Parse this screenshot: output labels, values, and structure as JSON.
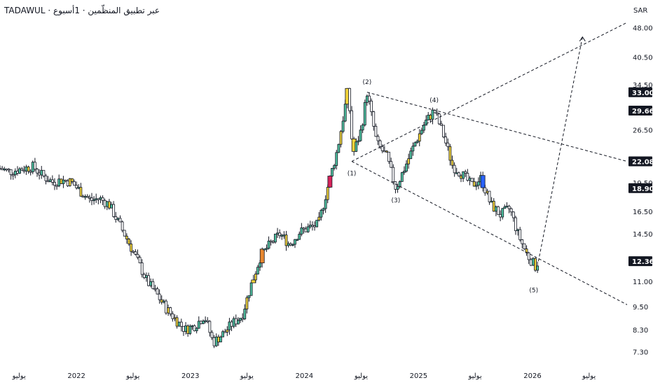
{
  "header": {
    "title": "TADAWUL · عبر تطبيق المنظّمين · 1أسبوع"
  },
  "currency": "SAR",
  "chart_data": {
    "type": "candlestick",
    "y_scale": "log",
    "ylim": [
      6.8,
      52
    ],
    "y_ticks": [
      48.0,
      40.5,
      34.5,
      29.5,
      26.5,
      19.5,
      16.5,
      14.5,
      11.0,
      9.5,
      8.3,
      7.3
    ],
    "y_ticks_labels": [
      "48.00",
      "40.50",
      "34.50",
      "29.50",
      "26.50",
      "19.50",
      "16.50",
      "14.50",
      "11.00",
      "9.50",
      "8.30",
      "7.30"
    ],
    "price_badges": [
      {
        "value": 33.0,
        "label": "33.00"
      },
      {
        "value": 29.66,
        "label": "29.66"
      },
      {
        "value": 22.08,
        "label": "22.08"
      },
      {
        "value": 18.9,
        "label": "18.90"
      },
      {
        "value": 12.36,
        "label": "12.36"
      }
    ],
    "x_range": [
      "2021-05-01",
      "2026-10-31"
    ],
    "x_ticks": [
      {
        "date": "2021-07-01",
        "label": "يوليو"
      },
      {
        "date": "2022-01-01",
        "label": "2022"
      },
      {
        "date": "2022-07-01",
        "label": "يوليو"
      },
      {
        "date": "2023-01-01",
        "label": "2023"
      },
      {
        "date": "2023-07-01",
        "label": "يوليو"
      },
      {
        "date": "2024-01-01",
        "label": "2024"
      },
      {
        "date": "2024-07-01",
        "label": "يوليو"
      },
      {
        "date": "2025-01-01",
        "label": "2025"
      },
      {
        "date": "2025-07-01",
        "label": "يوليو"
      },
      {
        "date": "2026-01-01",
        "label": "2026"
      },
      {
        "date": "2026-07-01",
        "label": "يوليو"
      }
    ],
    "price_path": [
      [
        "2021-05-01",
        21.2
      ],
      [
        "2021-06-01",
        20.8
      ],
      [
        "2021-07-15",
        21.2
      ],
      [
        "2021-08-15",
        21.4
      ],
      [
        "2021-09-15",
        20.3
      ],
      [
        "2021-10-15",
        19.6
      ],
      [
        "2021-11-15",
        19.8
      ],
      [
        "2021-12-15",
        19.6
      ],
      [
        "2022-01-15",
        18.5
      ],
      [
        "2022-02-15",
        17.6
      ],
      [
        "2022-03-15",
        17.8
      ],
      [
        "2022-04-15",
        17.2
      ],
      [
        "2022-05-15",
        15.5
      ],
      [
        "2022-06-15",
        13.9
      ],
      [
        "2022-07-15",
        12.4
      ],
      [
        "2022-08-15",
        11.0
      ],
      [
        "2022-09-15",
        10.2
      ],
      [
        "2022-10-15",
        9.4
      ],
      [
        "2022-11-15",
        8.8
      ],
      [
        "2022-12-15",
        8.3
      ],
      [
        "2023-01-15",
        8.5
      ],
      [
        "2023-02-15",
        9.0
      ],
      [
        "2023-03-15",
        7.7
      ],
      [
        "2023-04-15",
        8.1
      ],
      [
        "2023-05-15",
        8.6
      ],
      [
        "2023-06-15",
        9.0
      ],
      [
        "2023-07-15",
        10.8
      ],
      [
        "2023-08-15",
        12.8
      ],
      [
        "2023-09-15",
        13.7
      ],
      [
        "2023-10-15",
        14.5
      ],
      [
        "2023-11-15",
        13.6
      ],
      [
        "2023-12-15",
        14.6
      ],
      [
        "2024-01-15",
        15.0
      ],
      [
        "2024-02-15",
        15.3
      ],
      [
        "2024-03-15",
        18.9
      ],
      [
        "2024-04-15",
        23.5
      ],
      [
        "2024-05-01",
        27.5
      ],
      [
        "2024-05-20",
        33.5
      ],
      [
        "2024-06-05",
        23.0
      ],
      [
        "2024-07-01",
        26.5
      ],
      [
        "2024-07-20",
        33.0
      ],
      [
        "2024-08-20",
        24.5
      ],
      [
        "2024-09-20",
        22.8
      ],
      [
        "2024-10-20",
        18.9
      ],
      [
        "2024-11-20",
        21.5
      ],
      [
        "2024-12-20",
        24.5
      ],
      [
        "2025-01-20",
        27.5
      ],
      [
        "2025-02-20",
        29.7
      ],
      [
        "2025-03-20",
        26.0
      ],
      [
        "2025-04-20",
        21.5
      ],
      [
        "2025-05-20",
        20.5
      ],
      [
        "2025-06-20",
        19.2
      ],
      [
        "2025-07-20",
        20.0
      ],
      [
        "2025-08-20",
        17.2
      ],
      [
        "2025-09-20",
        16.2
      ],
      [
        "2025-10-20",
        16.8
      ],
      [
        "2025-11-15",
        14.5
      ],
      [
        "2025-12-15",
        12.8
      ],
      [
        "2026-01-10",
        12.0
      ],
      [
        "2026-01-20",
        12.36
      ]
    ],
    "annotations": [
      {
        "label": "(1)",
        "date": "2024-06-01",
        "price": 22.08
      },
      {
        "label": "(2)",
        "date": "2024-07-20",
        "price": 33.0
      },
      {
        "label": "(3)",
        "date": "2024-10-20",
        "price": 18.9
      },
      {
        "label": "(4)",
        "date": "2025-02-20",
        "price": 29.66
      },
      {
        "label": "(5)",
        "date": "2026-01-05",
        "price": 11.2
      }
    ],
    "trendlines": [
      {
        "from": [
          "2024-06-01",
          22.08
        ],
        "to": [
          "2026-10-31",
          49.5
        ]
      },
      {
        "from": [
          "2024-07-20",
          33.0
        ],
        "to": [
          "2026-10-31",
          22.08
        ]
      },
      {
        "from": [
          "2024-06-01",
          22.08
        ],
        "to": [
          "2026-10-31",
          9.6
        ]
      },
      {
        "from": [
          "2026-01-20",
          12.36
        ],
        "to": [
          "2026-06-10",
          45.5
        ]
      }
    ],
    "arrow_target": [
      "2026-06-10",
      45.5
    ],
    "colors": {
      "up": "#4fc3a1",
      "down": "#131722",
      "highlight_red": "#d8235a",
      "highlight_orange": "#e8872f",
      "highlight_yellow": "#f2d43a",
      "highlight_blue": "#2962ff",
      "badge": "#131722"
    }
  }
}
